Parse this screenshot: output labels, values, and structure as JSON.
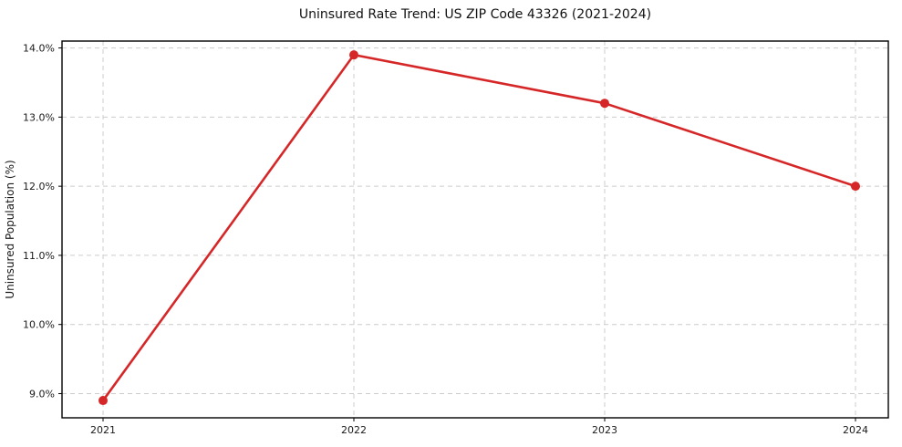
{
  "chart_data": {
    "type": "line",
    "title": "Uninsured Rate Trend: US ZIP Code 43326 (2021-2024)",
    "xlabel": "",
    "ylabel": "Uninsured Population (%)",
    "categories": [
      "2021",
      "2022",
      "2023",
      "2024"
    ],
    "values": [
      8.9,
      13.9,
      13.2,
      12.0
    ],
    "ylim": [
      8.65,
      14.1
    ],
    "yticks": [
      9.0,
      10.0,
      11.0,
      12.0,
      13.0,
      14.0
    ],
    "ytick_labels": [
      "9.0%",
      "10.0%",
      "11.0%",
      "12.0%",
      "13.0%",
      "14.0%"
    ],
    "grid": true,
    "grid_style": "dashed",
    "legend": "none",
    "colors": {
      "line": "#d62728",
      "marker": "#d62728",
      "grid": "#cccccc",
      "border": "#000000",
      "text": "#1a1a1a",
      "background": "#ffffff"
    }
  }
}
